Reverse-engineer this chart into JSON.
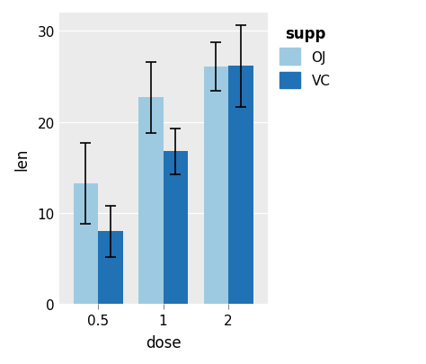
{
  "doses": [
    "0.5",
    "1",
    "2"
  ],
  "OJ_means": [
    13.23,
    22.7,
    26.06
  ],
  "VC_means": [
    7.98,
    16.77,
    26.14
  ],
  "OJ_err_minus": [
    4.46,
    3.91,
    2.65
  ],
  "OJ_err_plus": [
    4.46,
    3.91,
    2.65
  ],
  "VC_err_minus": [
    2.83,
    2.52,
    4.48
  ],
  "VC_err_plus": [
    2.83,
    2.52,
    4.48
  ],
  "OJ_color": "#9ecae1",
  "VC_color": "#2171b5",
  "background_color": "#ebebeb",
  "grid_color": "#ffffff",
  "xlabel": "dose",
  "ylabel": "len",
  "ylim": [
    0,
    32
  ],
  "yticks": [
    0,
    10,
    20,
    30
  ],
  "bar_width": 0.38,
  "legend_title": "supp",
  "legend_labels": [
    "OJ",
    "VC"
  ]
}
